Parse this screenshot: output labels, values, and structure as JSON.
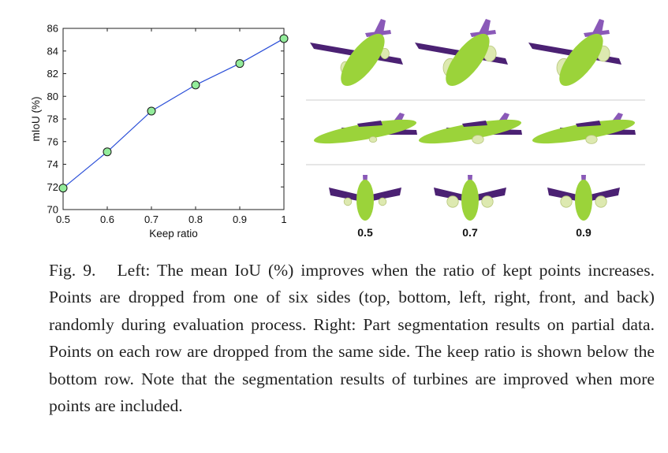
{
  "chart_data": {
    "type": "line",
    "title": "",
    "xlabel": "Keep ratio",
    "ylabel": "mIoU (%)",
    "x": [
      0.5,
      0.6,
      0.7,
      0.8,
      0.9,
      1.0
    ],
    "xtick_labels": [
      "0.5",
      "0.6",
      "0.7",
      "0.8",
      "0.9",
      "1"
    ],
    "y": [
      71.9,
      75.1,
      78.7,
      81.0,
      82.9,
      85.1
    ],
    "xlim": [
      0.5,
      1.0
    ],
    "ylim": [
      70,
      86
    ],
    "yticks": [
      70,
      72,
      74,
      76,
      78,
      80,
      82,
      84,
      86
    ],
    "line_color": "#2b4fd8",
    "marker_fill": "#93ec9b",
    "grid": false
  },
  "segmentation_panel": {
    "keep_ratio_labels": [
      "0.5",
      "0.7",
      "0.9"
    ],
    "part_colors": {
      "body": "#9bd33a",
      "wing": "#4b2173",
      "tail": "#8a59b8",
      "engine": "#dde9b0"
    }
  },
  "caption": {
    "label": "Fig. 9.",
    "text": "Left: The mean IoU (%) improves when the ratio of kept points in­creases. Points are dropped from one of six sides (top, bottom, left, right, front, and back) randomly during evaluation process. Right: Part segmen­tation results on partial data. Points on each row are dropped from the same side. The keep ratio is shown below the bottom row. Note that the segmentation results of turbines are improved when more points are included."
  }
}
